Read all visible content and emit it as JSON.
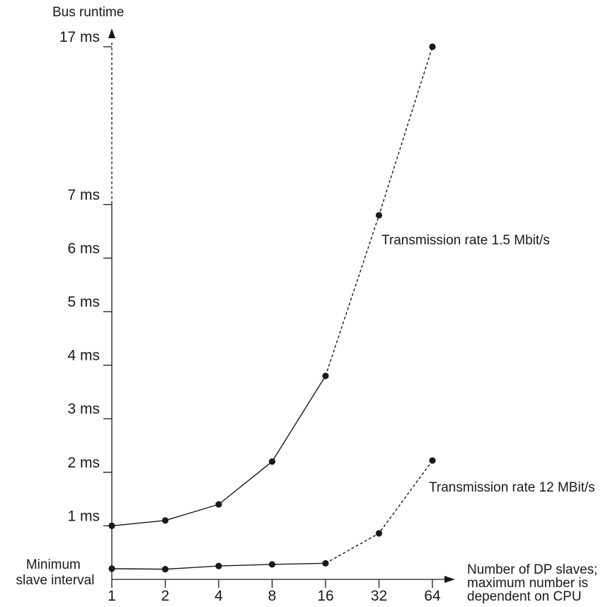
{
  "chart_data": {
    "type": "line",
    "ylabel": "Bus runtime",
    "xlabel_lines": [
      "Number of DP slaves;",
      "maximum number is",
      "dependent on CPU"
    ],
    "min_label_lines": [
      "Minimum",
      "slave interval"
    ],
    "x_categories": [
      "1",
      "2",
      "4",
      "8",
      "16",
      "32",
      "64"
    ],
    "y_ticks": [
      {
        "value": 1,
        "label": "1 ms"
      },
      {
        "value": 2,
        "label": "2 ms"
      },
      {
        "value": 3,
        "label": "3 ms"
      },
      {
        "value": 4,
        "label": "4 ms"
      },
      {
        "value": 5,
        "label": "5 ms"
      },
      {
        "value": 6,
        "label": "6 ms"
      },
      {
        "value": 7,
        "label": "7 ms"
      },
      {
        "value": 17,
        "label": "17 ms"
      }
    ],
    "axis_break": "dashed between 7 ms and 17 ms",
    "series": [
      {
        "name": "Transmission rate 1.5 Mbit/s",
        "values": [
          1.0,
          1.1,
          1.4,
          2.2,
          3.8,
          6.8,
          17.0
        ],
        "solid_until_index": 4
      },
      {
        "name": "Transmission rate 12 MBit/s",
        "values": [
          0.2,
          0.19,
          0.25,
          0.28,
          0.3,
          0.86,
          2.22
        ],
        "solid_until_index": 4
      }
    ],
    "colors": {
      "line": "#1a1a1a",
      "marker": "#1a1a1a"
    }
  }
}
